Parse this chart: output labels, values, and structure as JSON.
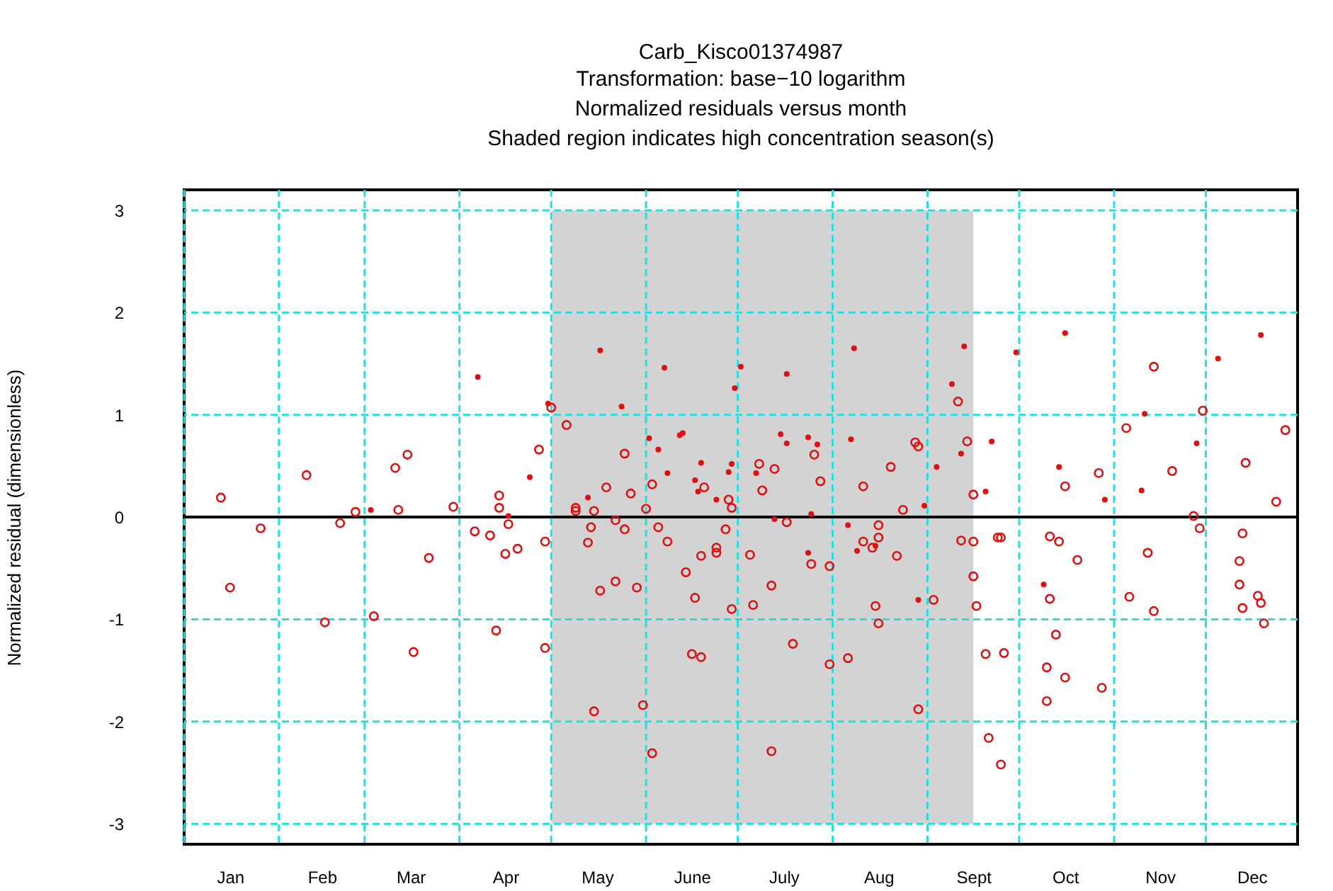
{
  "chart_data": {
    "type": "scatter",
    "title": "Carb_Kisco01374987",
    "subtitle": "Transformation: base−10 logarithm\nNormalized residuals versus month\nShaded region indicates high concentration season(s)",
    "ylabel": "Normalized residual (dimensionless)",
    "xlim": [
      "--01-01",
      "--12-31"
    ],
    "ylim": [
      -3.2,
      3.2
    ],
    "xticks": [
      {
        "value": "--01-01",
        "label": null
      },
      {
        "value": "--01-16",
        "label": "Jan"
      },
      {
        "value": "--02-01",
        "label": null
      },
      {
        "value": "--02-15",
        "label": "Feb"
      },
      {
        "value": "--03-01",
        "label": null
      },
      {
        "value": "--03-16",
        "label": "Mar"
      },
      {
        "value": "--04-01",
        "label": null
      },
      {
        "value": "--04-16",
        "label": "Apr"
      },
      {
        "value": "--05-01",
        "label": null
      },
      {
        "value": "--05-16",
        "label": "May"
      },
      {
        "value": "--06-01",
        "label": null
      },
      {
        "value": "--06-16",
        "label": "June"
      },
      {
        "value": "--07-01",
        "label": null
      },
      {
        "value": "--07-16",
        "label": "July"
      },
      {
        "value": "--08-01",
        "label": null
      },
      {
        "value": "--08-16",
        "label": "Aug"
      },
      {
        "value": "--09-01",
        "label": null
      },
      {
        "value": "--09-16",
        "label": "Sept"
      },
      {
        "value": "--10-01",
        "label": null
      },
      {
        "value": "--10-16",
        "label": "Oct"
      },
      {
        "value": "--11-01",
        "label": null
      },
      {
        "value": "--11-16",
        "label": "Nov"
      },
      {
        "value": "--12-01",
        "label": null
      },
      {
        "value": "--12-16",
        "label": "Dec"
      }
    ],
    "yticks": [
      -3,
      -2,
      -1,
      0,
      1,
      2,
      3
    ],
    "grid": true,
    "marker": "circle",
    "bands": [
      {
        "axis": "x",
        "from": "--05-01",
        "to": "--09-16",
        "color": "#d3d3d3"
      }
    ],
    "ref_lines": [
      {
        "axis": "y",
        "value": 0,
        "color": "#000000",
        "line_style": "solid"
      }
    ],
    "series": [
      {
        "color": "#dd1111",
        "x": [
          "--01-13",
          "--01-16",
          "--01-26",
          "--02-10",
          "--02-16",
          "--02-21",
          "--02-26",
          "--03-04",
          "--03-11",
          "--03-12",
          "--03-15",
          "--03-17",
          "--03-22",
          "--03-30",
          "--04-06",
          "--04-11",
          "--04-13",
          "--04-14",
          "--04-14",
          "--04-16",
          "--04-17",
          "--04-20",
          "--04-27",
          "--04-29",
          "--04-29",
          "--05-01",
          "--05-06",
          "--05-09",
          "--05-09",
          "--05-13",
          "--05-14",
          "--05-15",
          "--05-15",
          "--05-17",
          "--05-19",
          "--05-22",
          "--05-22",
          "--05-25",
          "--05-25",
          "--05-27",
          "--05-29",
          "--05-31",
          "--06-01",
          "--06-03",
          "--06-03",
          "--06-05",
          "--06-08",
          "--06-14",
          "--06-16",
          "--06-17",
          "--06-19",
          "--06-19",
          "--06-20",
          "--06-24",
          "--06-24",
          "--06-27",
          "--06-28",
          "--06-29",
          "--06-29",
          "--07-05",
          "--07-06",
          "--07-08",
          "--07-09",
          "--07-12",
          "--07-12",
          "--07-13",
          "--07-17",
          "--07-19",
          "--07-25",
          "--07-26",
          "--07-28",
          "--07-31",
          "--07-31",
          "--08-06",
          "--08-11",
          "--08-11",
          "--08-14",
          "--08-15",
          "--08-16",
          "--08-16",
          "--08-16",
          "--08-20",
          "--08-22",
          "--08-24",
          "--08-28",
          "--08-29",
          "--08-29",
          "--09-03",
          "--09-11",
          "--09-12",
          "--09-14",
          "--09-16",
          "--09-16",
          "--09-16",
          "--09-17",
          "--09-20",
          "--09-21",
          "--09-24",
          "--09-25",
          "--09-25",
          "--09-26",
          "--10-10",
          "--10-10",
          "--10-11",
          "--10-11",
          "--10-13",
          "--10-14",
          "--10-16",
          "--10-16",
          "--10-20",
          "--10-27",
          "--10-28",
          "--11-05",
          "--11-06",
          "--11-12",
          "--11-14",
          "--11-14",
          "--11-20",
          "--11-27",
          "--11-29",
          "--11-30",
          "--12-12",
          "--12-12",
          "--12-13",
          "--12-13",
          "--12-14",
          "--12-18",
          "--12-19",
          "--12-20",
          "--12-24",
          "--12-27"
        ],
        "values": [
          0.19,
          -0.69,
          -0.11,
          0.41,
          -1.03,
          -0.06,
          0.05,
          -0.97,
          0.48,
          0.07,
          0.61,
          -1.32,
          -0.4,
          0.1,
          -0.14,
          -0.18,
          -1.11,
          0.21,
          0.09,
          -0.36,
          -0.07,
          -0.31,
          0.66,
          -1.28,
          -0.24,
          1.07,
          0.9,
          0.09,
          0.06,
          -0.25,
          -0.1,
          0.06,
          -1.9,
          -0.72,
          0.29,
          -0.03,
          -0.63,
          0.62,
          -0.12,
          0.23,
          -0.69,
          -1.84,
          0.08,
          0.32,
          -2.31,
          -0.1,
          -0.24,
          -0.54,
          -1.34,
          -0.79,
          -0.38,
          -1.37,
          0.29,
          -0.3,
          -0.35,
          -0.12,
          0.17,
          0.09,
          -0.9,
          -0.37,
          -0.86,
          0.52,
          0.26,
          -0.67,
          -2.29,
          0.47,
          -0.05,
          -1.24,
          -0.46,
          0.61,
          0.35,
          -0.48,
          -1.44,
          -1.38,
          0.3,
          -0.24,
          -0.3,
          -0.87,
          -0.08,
          -0.2,
          -1.04,
          0.49,
          -0.38,
          0.07,
          0.73,
          -1.88,
          0.69,
          -0.81,
          1.13,
          -0.23,
          0.74,
          0.22,
          -0.24,
          -0.58,
          -0.87,
          -1.34,
          -2.16,
          -0.2,
          -0.2,
          -2.42,
          -1.33,
          -1.47,
          -1.8,
          -0.19,
          -0.8,
          -1.15,
          -0.24,
          0.3,
          -1.57,
          -0.42,
          0.43,
          -1.67,
          0.87,
          -0.78,
          -0.35,
          1.47,
          -0.92,
          0.45,
          0.01,
          -0.11,
          1.04,
          -0.43,
          -0.66,
          -0.16,
          -0.89,
          0.53,
          -0.77,
          -0.84,
          -1.04,
          0.15,
          0.85
        ]
      },
      {
        "color": "#dd1111",
        "x": [
          "--03-03",
          "--04-07",
          "--04-17",
          "--04-24",
          "--04-30",
          "--05-13",
          "--05-17",
          "--05-24",
          "--06-02",
          "--06-05",
          "--06-07",
          "--06-08",
          "--06-12",
          "--06-13",
          "--06-17",
          "--06-18",
          "--06-19",
          "--06-24",
          "--06-28",
          "--06-29",
          "--06-30",
          "--07-02",
          "--07-07",
          "--07-13",
          "--07-15",
          "--07-17",
          "--07-17",
          "--07-24",
          "--07-24",
          "--07-25",
          "--07-27",
          "--08-06",
          "--08-07",
          "--08-08",
          "--08-09",
          "--08-15",
          "--08-29",
          "--08-31",
          "--09-04",
          "--09-09",
          "--09-12",
          "--09-13",
          "--09-20",
          "--09-22",
          "--09-30",
          "--10-09",
          "--10-14",
          "--10-16",
          "--10-29",
          "--11-10",
          "--11-11",
          "--11-28",
          "--12-05",
          "--12-19"
        ],
        "values": [
          0.07,
          1.37,
          0.01,
          0.39,
          1.11,
          0.19,
          1.63,
          1.08,
          0.77,
          0.66,
          1.46,
          0.43,
          0.8,
          0.82,
          0.36,
          0.25,
          0.53,
          0.17,
          0.44,
          0.52,
          1.26,
          1.47,
          0.43,
          -0.02,
          0.81,
          1.4,
          0.72,
          0.78,
          -0.35,
          0.03,
          0.71,
          -0.08,
          0.76,
          1.65,
          -0.33,
          -0.28,
          -0.81,
          0.11,
          0.49,
          1.3,
          0.62,
          1.67,
          0.25,
          0.74,
          1.61,
          -0.66,
          0.49,
          1.8,
          0.17,
          0.26,
          1.01,
          0.72,
          1.55,
          1.78
        ]
      }
    ]
  }
}
